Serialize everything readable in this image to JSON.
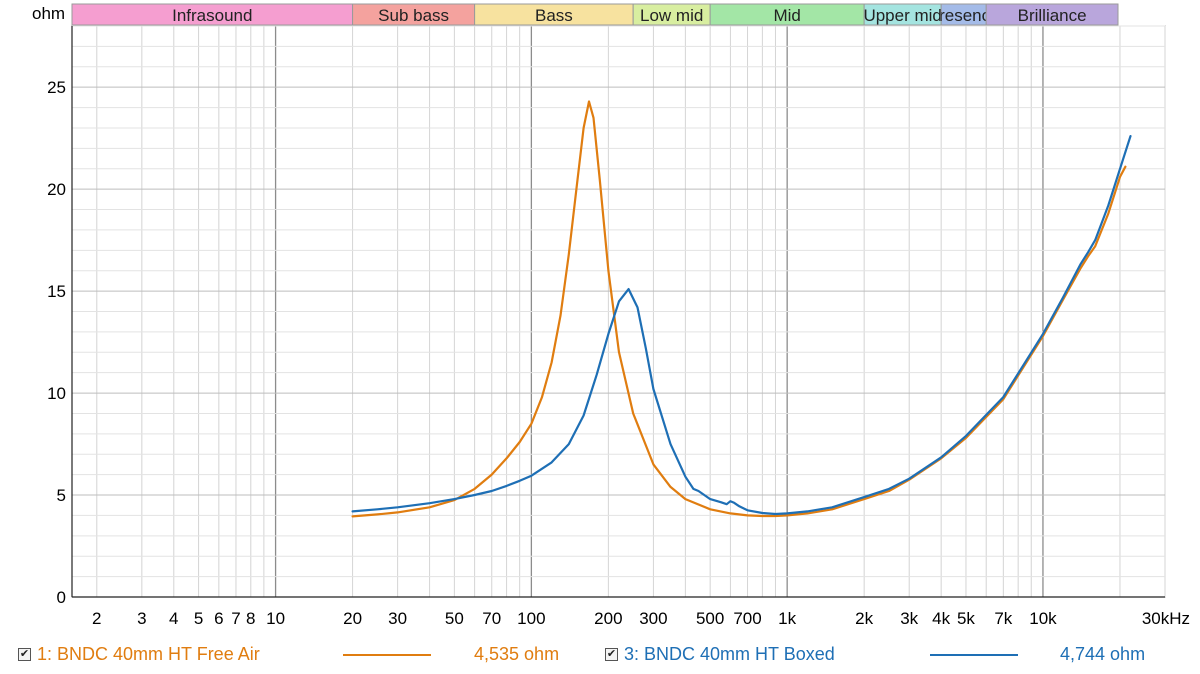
{
  "chart_data": {
    "type": "line",
    "ylabel": "ohm",
    "xlabel": "",
    "xscale": "log",
    "xlim": [
      1.6,
      30000
    ],
    "ylim": [
      0,
      28
    ],
    "x_ticks": [
      {
        "v": 2,
        "label": "2"
      },
      {
        "v": 3,
        "label": "3"
      },
      {
        "v": 4,
        "label": "4"
      },
      {
        "v": 5,
        "label": "5"
      },
      {
        "v": 6,
        "label": "6"
      },
      {
        "v": 7,
        "label": "7"
      },
      {
        "v": 8,
        "label": "8"
      },
      {
        "v": 10,
        "label": "10"
      },
      {
        "v": 20,
        "label": "20"
      },
      {
        "v": 30,
        "label": "30"
      },
      {
        "v": 50,
        "label": "50"
      },
      {
        "v": 70,
        "label": "70"
      },
      {
        "v": 100,
        "label": "100"
      },
      {
        "v": 200,
        "label": "200"
      },
      {
        "v": 300,
        "label": "300"
      },
      {
        "v": 500,
        "label": "500"
      },
      {
        "v": 700,
        "label": "700"
      },
      {
        "v": 1000,
        "label": "1k"
      },
      {
        "v": 2000,
        "label": "2k"
      },
      {
        "v": 3000,
        "label": "3k"
      },
      {
        "v": 4000,
        "label": "4k"
      },
      {
        "v": 5000,
        "label": "5k"
      },
      {
        "v": 7000,
        "label": "7k"
      },
      {
        "v": 10000,
        "label": "10k"
      },
      {
        "v": 30000,
        "label": "30kHz"
      }
    ],
    "y_ticks": [
      0,
      5,
      10,
      15,
      20,
      25
    ],
    "bands": [
      {
        "name": "Infrasound",
        "from": 1.6,
        "to": 20,
        "color": "#f59ed0"
      },
      {
        "name": "Sub bass",
        "from": 20,
        "to": 60,
        "color": "#f4a29e"
      },
      {
        "name": "Bass",
        "from": 60,
        "to": 250,
        "color": "#f7e29f"
      },
      {
        "name": "Low mid",
        "from": 250,
        "to": 500,
        "color": "#d8eea0"
      },
      {
        "name": "Mid",
        "from": 500,
        "to": 2000,
        "color": "#a3e6a6"
      },
      {
        "name": "Upper mid",
        "from": 2000,
        "to": 4000,
        "color": "#a4e4e0"
      },
      {
        "name": "Presence",
        "from": 4000,
        "to": 6000,
        "color": "#a4bbe8"
      },
      {
        "name": "Brilliance",
        "from": 6000,
        "to": 20000,
        "color": "#b9a6dc"
      }
    ],
    "grid": true,
    "legend_position": "bottom",
    "series": [
      {
        "name": "1: BNDC 40mm HT Free Air",
        "color": "#e07d10",
        "value_text": "4,535 ohm",
        "points": [
          [
            20,
            3.95
          ],
          [
            25,
            4.05
          ],
          [
            30,
            4.15
          ],
          [
            40,
            4.4
          ],
          [
            50,
            4.75
          ],
          [
            60,
            5.3
          ],
          [
            70,
            6.0
          ],
          [
            80,
            6.8
          ],
          [
            90,
            7.6
          ],
          [
            100,
            8.5
          ],
          [
            110,
            9.8
          ],
          [
            120,
            11.5
          ],
          [
            130,
            13.8
          ],
          [
            140,
            16.8
          ],
          [
            150,
            20.0
          ],
          [
            160,
            23.0
          ],
          [
            168,
            24.3
          ],
          [
            175,
            23.5
          ],
          [
            185,
            20.5
          ],
          [
            200,
            16.0
          ],
          [
            220,
            12.0
          ],
          [
            250,
            9.0
          ],
          [
            300,
            6.5
          ],
          [
            350,
            5.4
          ],
          [
            400,
            4.8
          ],
          [
            500,
            4.3
          ],
          [
            600,
            4.1
          ],
          [
            700,
            4.0
          ],
          [
            800,
            3.97
          ],
          [
            900,
            3.97
          ],
          [
            1000,
            4.0
          ],
          [
            1200,
            4.1
          ],
          [
            1500,
            4.3
          ],
          [
            2000,
            4.8
          ],
          [
            2500,
            5.2
          ],
          [
            3000,
            5.75
          ],
          [
            4000,
            6.8
          ],
          [
            5000,
            7.8
          ],
          [
            7000,
            9.7
          ],
          [
            10000,
            12.8
          ],
          [
            12000,
            14.6
          ],
          [
            14000,
            16.1
          ],
          [
            15000,
            16.7
          ],
          [
            16000,
            17.2
          ],
          [
            18000,
            18.8
          ],
          [
            20000,
            20.6
          ],
          [
            21000,
            21.1
          ]
        ]
      },
      {
        "name": "3: BNDC 40mm HT Boxed",
        "color": "#1e6fb5",
        "value_text": "4,744 ohm",
        "points": [
          [
            20,
            4.2
          ],
          [
            25,
            4.3
          ],
          [
            30,
            4.4
          ],
          [
            40,
            4.6
          ],
          [
            50,
            4.8
          ],
          [
            60,
            5.0
          ],
          [
            70,
            5.2
          ],
          [
            80,
            5.45
          ],
          [
            90,
            5.7
          ],
          [
            100,
            5.95
          ],
          [
            120,
            6.6
          ],
          [
            140,
            7.5
          ],
          [
            160,
            8.9
          ],
          [
            180,
            10.9
          ],
          [
            200,
            12.9
          ],
          [
            220,
            14.5
          ],
          [
            240,
            15.1
          ],
          [
            260,
            14.2
          ],
          [
            280,
            12.2
          ],
          [
            300,
            10.2
          ],
          [
            350,
            7.5
          ],
          [
            400,
            5.9
          ],
          [
            430,
            5.3
          ],
          [
            450,
            5.2
          ],
          [
            500,
            4.8
          ],
          [
            550,
            4.65
          ],
          [
            580,
            4.55
          ],
          [
            600,
            4.7
          ],
          [
            620,
            4.62
          ],
          [
            650,
            4.45
          ],
          [
            700,
            4.25
          ],
          [
            800,
            4.12
          ],
          [
            900,
            4.07
          ],
          [
            1000,
            4.1
          ],
          [
            1200,
            4.2
          ],
          [
            1500,
            4.4
          ],
          [
            2000,
            4.9
          ],
          [
            2500,
            5.3
          ],
          [
            3000,
            5.8
          ],
          [
            4000,
            6.85
          ],
          [
            5000,
            7.9
          ],
          [
            7000,
            9.8
          ],
          [
            10000,
            12.9
          ],
          [
            12000,
            14.7
          ],
          [
            14000,
            16.3
          ],
          [
            15000,
            16.9
          ],
          [
            16000,
            17.5
          ],
          [
            18000,
            19.2
          ],
          [
            20000,
            21.0
          ],
          [
            22000,
            22.6
          ]
        ]
      }
    ]
  }
}
